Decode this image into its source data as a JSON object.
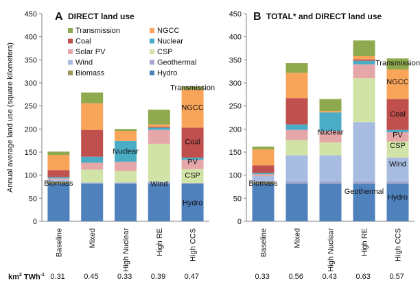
{
  "figure": {
    "units_label": "km² TWh⁻¹"
  },
  "colors": {
    "Hydro": "#4f81bd",
    "Biomass": "#9c9a5a",
    "Geothermal": "#a5a9d2",
    "Wind": "#a7bce0",
    "CSP": "#d2e3a7",
    "Solar PV": "#e6a7a9",
    "Nuclear": "#4bacc6",
    "Coal": "#c0504d",
    "NGCC": "#f8a55a",
    "Transmission": "#8fa94f"
  },
  "chart_data": [
    {
      "type": "bar",
      "stacked": true,
      "panel_letter": "A",
      "title": "DIRECT land use",
      "ylabel": "Annual average land use (square kilometers)",
      "xlabel": "",
      "ylim": [
        0,
        450
      ],
      "yticks": [
        0,
        50,
        100,
        150,
        200,
        250,
        300,
        350,
        400,
        450
      ],
      "grid": false,
      "legend": {
        "placement": "top-left",
        "columns": [
          [
            "Transmission",
            "Coal",
            "Solar PV",
            "Wind",
            "Biomass"
          ],
          [
            "NGCC",
            "Nuclear",
            "CSP",
            "Geothermal",
            "Hydro"
          ]
        ]
      },
      "categories": [
        "Baseline",
        "Mixed",
        "High Nuclear",
        "High RE",
        "High CCS"
      ],
      "series": [
        {
          "name": "Hydro",
          "values": [
            82,
            82,
            82,
            82,
            82
          ]
        },
        {
          "name": "Biomass",
          "values": [
            3,
            0,
            0,
            0,
            0
          ]
        },
        {
          "name": "Geothermal",
          "values": [
            1,
            1,
            1,
            2,
            1
          ]
        },
        {
          "name": "Wind",
          "values": [
            4,
            1,
            1,
            2,
            0
          ]
        },
        {
          "name": "CSP",
          "values": [
            0,
            28,
            25,
            82,
            30
          ]
        },
        {
          "name": "Solar PV",
          "values": [
            3,
            15,
            20,
            30,
            20
          ]
        },
        {
          "name": "Nuclear",
          "values": [
            3,
            13,
            45,
            5,
            5
          ]
        },
        {
          "name": "Coal",
          "values": [
            15,
            58,
            0,
            2,
            65
          ]
        },
        {
          "name": "NGCC",
          "values": [
            33,
            58,
            22,
            5,
            83
          ]
        },
        {
          "name": "Transmission",
          "values": [
            7,
            23,
            4,
            32,
            6
          ]
        }
      ],
      "bar_labels": [
        {
          "text": "Biomass",
          "category": "Baseline",
          "value": 83
        },
        {
          "text": "Nuclear",
          "category": "High Nuclear",
          "value": 152
        },
        {
          "text": "Wind",
          "category": "High RE",
          "value": 82
        },
        {
          "text": "Transmission",
          "category": "High CCS",
          "value": 290
        },
        {
          "text": "NGCC",
          "category": "High CCS",
          "value": 247
        },
        {
          "text": "Coal",
          "category": "High CCS",
          "value": 173
        },
        {
          "text": "PV",
          "category": "High CCS",
          "value": 130
        },
        {
          "text": "CSP",
          "category": "High CCS",
          "value": 100
        },
        {
          "text": "Hydro",
          "category": "High CCS",
          "value": 41
        }
      ],
      "intensity": [
        "0.31",
        "0.45",
        "0.33",
        "0.39",
        "0.47"
      ]
    },
    {
      "type": "bar",
      "stacked": true,
      "panel_letter": "B",
      "title": "TOTAL* and DIRECT land use",
      "ylabel": "",
      "xlabel": "",
      "ylim": [
        0,
        450
      ],
      "yticks": [
        0,
        50,
        100,
        150,
        200,
        250,
        300,
        350,
        400,
        450
      ],
      "grid": false,
      "categories": [
        "Baseline",
        "Mixed",
        "High Nuclear",
        "High RE",
        "High CCS"
      ],
      "series": [
        {
          "name": "Hydro",
          "values": [
            82,
            82,
            82,
            82,
            82
          ]
        },
        {
          "name": "Biomass",
          "values": [
            3,
            0,
            0,
            0,
            0
          ]
        },
        {
          "name": "Geothermal",
          "values": [
            3,
            6,
            6,
            6,
            6
          ]
        },
        {
          "name": "Wind",
          "values": [
            10,
            55,
            55,
            127,
            50
          ]
        },
        {
          "name": "CSP",
          "values": [
            0,
            33,
            28,
            95,
            35
          ]
        },
        {
          "name": "Solar PV",
          "values": [
            4,
            22,
            25,
            30,
            20
          ]
        },
        {
          "name": "Nuclear",
          "values": [
            3,
            12,
            40,
            8,
            5
          ]
        },
        {
          "name": "Coal",
          "values": [
            16,
            57,
            0,
            3,
            67
          ]
        },
        {
          "name": "NGCC",
          "values": [
            35,
            55,
            3,
            7,
            64
          ]
        },
        {
          "name": "Transmission",
          "values": [
            6,
            21,
            26,
            34,
            24
          ]
        }
      ],
      "bar_labels": [
        {
          "text": "Biomass",
          "category": "Baseline",
          "value": 83
        },
        {
          "text": "Nuclear",
          "category": "High Nuclear",
          "value": 194
        },
        {
          "text": "Geothermal",
          "category": "High RE",
          "value": 65
        },
        {
          "text": "Transmission",
          "category": "High CCS",
          "value": 344
        },
        {
          "text": "NGCC",
          "category": "High CCS",
          "value": 303
        },
        {
          "text": "Coal",
          "category": "High CCS",
          "value": 233
        },
        {
          "text": "PV",
          "category": "High CCS",
          "value": 188
        },
        {
          "text": "CSP",
          "category": "High CCS",
          "value": 165
        },
        {
          "text": "Wind",
          "category": "High CCS",
          "value": 125
        },
        {
          "text": "Hydro",
          "category": "High CCS",
          "value": 53
        }
      ],
      "intensity": [
        "0.33",
        "0.56",
        "0.43",
        "0.63",
        "0.57"
      ]
    }
  ]
}
